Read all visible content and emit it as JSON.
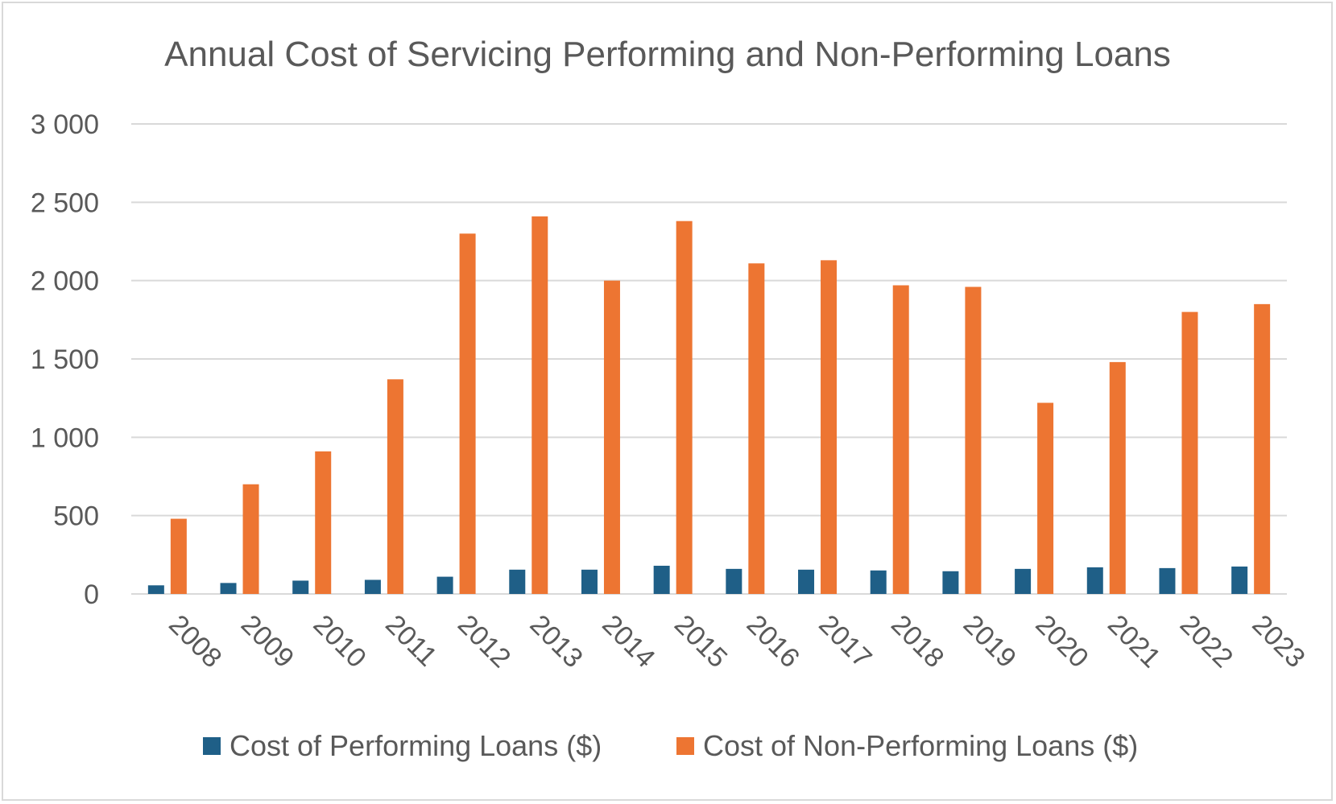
{
  "chart_data": {
    "type": "bar",
    "title": "Annual Cost of Servicing Performing and Non-Performing Loans",
    "xlabel": "",
    "ylabel": "",
    "categories": [
      "2008",
      "2009",
      "2010",
      "2011",
      "2012",
      "2013",
      "2014",
      "2015",
      "2016",
      "2017",
      "2018",
      "2019",
      "2020",
      "2021",
      "2022",
      "2023"
    ],
    "series": [
      {
        "name": "Cost of Performing Loans ($)",
        "color": "#1f5f87",
        "values": [
          55,
          70,
          85,
          90,
          110,
          155,
          155,
          180,
          160,
          155,
          150,
          145,
          160,
          170,
          165,
          175
        ]
      },
      {
        "name": "Cost of Non-Performing Loans ($)",
        "color": "#ed7532",
        "values": [
          480,
          700,
          910,
          1370,
          2300,
          2410,
          2000,
          2380,
          2110,
          2130,
          1970,
          1960,
          1220,
          1480,
          1800,
          1850
        ]
      }
    ],
    "ylim": [
      0,
      3000
    ],
    "yticks": [
      0,
      500,
      1000,
      1500,
      2000,
      2500,
      3000
    ],
    "ytick_labels": [
      "0",
      "500",
      "1 000",
      "1 500",
      "2 000",
      "2 500",
      "3 000"
    ],
    "grid": true,
    "legend_position": "bottom"
  }
}
